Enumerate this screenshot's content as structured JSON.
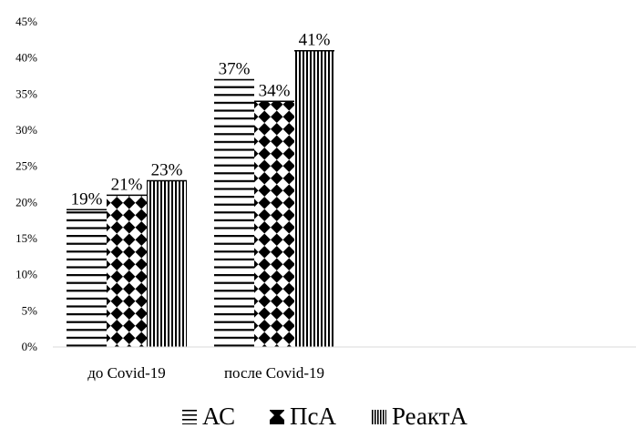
{
  "chart_data": {
    "type": "bar",
    "categories": [
      "до Covid-19",
      "после Covid-19"
    ],
    "series": [
      {
        "name": "АС",
        "pattern": "horizontal-lines",
        "values": [
          19,
          37
        ]
      },
      {
        "name": "ПсА",
        "pattern": "checker-diamond",
        "values": [
          21,
          34
        ]
      },
      {
        "name": "РеактА",
        "pattern": "vertical-lines",
        "values": [
          23,
          41
        ]
      }
    ],
    "data_labels": [
      [
        "19%",
        "37%"
      ],
      [
        "21%",
        "34%"
      ],
      [
        "23%",
        "41%"
      ]
    ],
    "yticks": [
      "0%",
      "5%",
      "10%",
      "15%",
      "20%",
      "25%",
      "30%",
      "35%",
      "40%",
      "45%"
    ],
    "ylim": [
      0,
      45
    ],
    "grid": false,
    "legend_position": "bottom",
    "title": "",
    "xlabel": "",
    "ylabel": ""
  }
}
